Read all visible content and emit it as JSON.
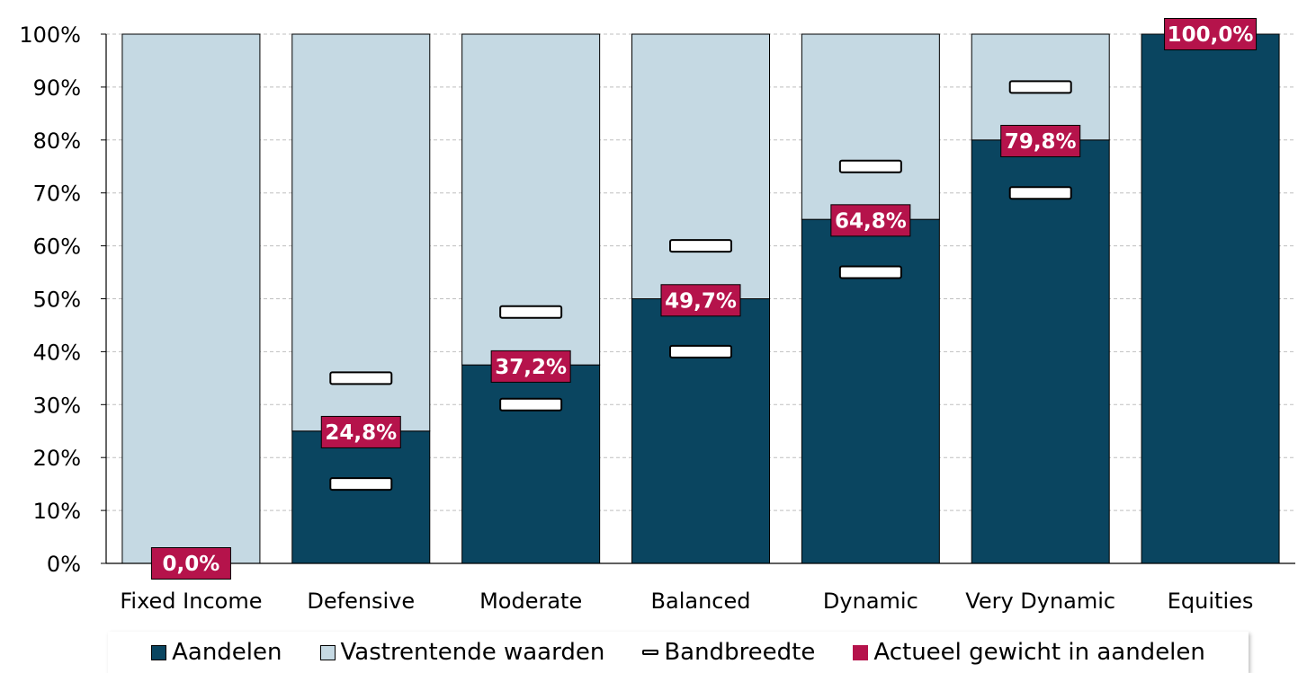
{
  "chart_data": {
    "type": "bar",
    "stacked": true,
    "categories": [
      "Fixed Income",
      "Defensive",
      "Moderate",
      "Balanced",
      "Dynamic",
      "Very Dynamic",
      "Equities"
    ],
    "series": [
      {
        "name": "Aandelen",
        "color": "#0A4560",
        "values": [
          0,
          25,
          37.5,
          50,
          65,
          80,
          100
        ]
      },
      {
        "name": "Vastrentende waarden",
        "color": "#C5D9E3",
        "values": [
          100,
          75,
          62.5,
          50,
          35,
          20,
          0
        ]
      }
    ],
    "band": {
      "name": "Bandbreedte",
      "lower": [
        null,
        15,
        30,
        40,
        55,
        70,
        null
      ],
      "upper": [
        null,
        35,
        47.5,
        60,
        75,
        90,
        null
      ]
    },
    "actual": {
      "name": "Actueel gewicht in aandelen",
      "color": "#B5134B",
      "values": [
        0.0,
        24.8,
        37.2,
        49.7,
        64.8,
        79.8,
        100.0
      ],
      "labels": [
        "0,0%",
        "24,8%",
        "37,2%",
        "49,7%",
        "64,8%",
        "79,8%",
        "100,0%"
      ]
    },
    "yticks": [
      "0%",
      "10%",
      "20%",
      "30%",
      "40%",
      "50%",
      "60%",
      "70%",
      "80%",
      "90%",
      "100%"
    ],
    "ylim": [
      0,
      100
    ],
    "grid": true,
    "legend_position": "bottom"
  },
  "legend": {
    "aandelen": "Aandelen",
    "vastrentend": "Vastrentende waarden",
    "band": "Bandbreedte",
    "actueel": "Actueel gewicht in aandelen"
  }
}
